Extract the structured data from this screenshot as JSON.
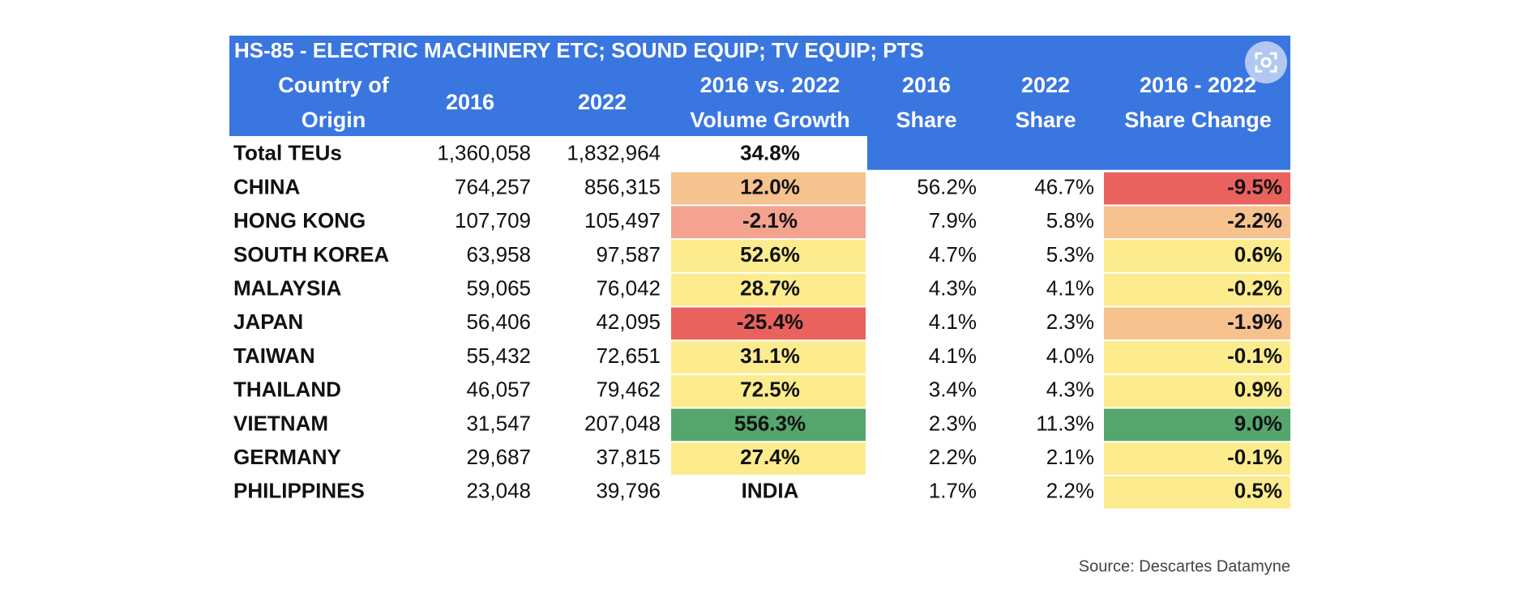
{
  "chart_data": {
    "type": "table",
    "title": "HS-85 - ELECTRIC MACHINERY ETC; SOUND EQUIP; TV EQUIP; PTS",
    "columns": [
      "Country of Origin",
      "2016",
      "2022",
      "2016 vs. 2022 Volume Growth",
      "2016 Share",
      "2022 Share",
      "2016 - 2022 Share Change"
    ],
    "header_lines": [
      [
        "Country of",
        "Origin"
      ],
      [
        "2016"
      ],
      [
        "2022"
      ],
      [
        "2016  vs. 2022",
        "Volume Growth"
      ],
      [
        "2016",
        "Share"
      ],
      [
        "2022",
        "Share"
      ],
      [
        "2016 - 2022",
        "Share Change"
      ]
    ],
    "rows": [
      {
        "country": "Total TEUs",
        "v2016": "1,360,058",
        "v2022": "1,832,964",
        "growth": "34.8%",
        "share2016": "",
        "share2022": "",
        "share_change": ""
      },
      {
        "country": "CHINA",
        "v2016": "764,257",
        "v2022": "856,315",
        "growth": "12.0%",
        "share2016": "56.2%",
        "share2022": "46.7%",
        "share_change": "-9.5%"
      },
      {
        "country": "HONG KONG",
        "v2016": "107,709",
        "v2022": "105,497",
        "growth": "-2.1%",
        "share2016": "7.9%",
        "share2022": "5.8%",
        "share_change": "-2.2%"
      },
      {
        "country": "SOUTH KOREA",
        "v2016": "63,958",
        "v2022": "97,587",
        "growth": "52.6%",
        "share2016": "4.7%",
        "share2022": "5.3%",
        "share_change": "0.6%"
      },
      {
        "country": "MALAYSIA",
        "v2016": "59,065",
        "v2022": "76,042",
        "growth": "28.7%",
        "share2016": "4.3%",
        "share2022": "4.1%",
        "share_change": "-0.2%"
      },
      {
        "country": "JAPAN",
        "v2016": "56,406",
        "v2022": "42,095",
        "growth": "-25.4%",
        "share2016": "4.1%",
        "share2022": "2.3%",
        "share_change": "-1.9%"
      },
      {
        "country": "TAIWAN",
        "v2016": "55,432",
        "v2022": "72,651",
        "growth": "31.1%",
        "share2016": "4.1%",
        "share2022": "4.0%",
        "share_change": "-0.1%"
      },
      {
        "country": "THAILAND",
        "v2016": "46,057",
        "v2022": "79,462",
        "growth": "72.5%",
        "share2016": "3.4%",
        "share2022": "4.3%",
        "share_change": "0.9%"
      },
      {
        "country": "VIETNAM",
        "v2016": "31,547",
        "v2022": "207,048",
        "growth": "556.3%",
        "share2016": "2.3%",
        "share2022": "11.3%",
        "share_change": "9.0%"
      },
      {
        "country": "GERMANY",
        "v2016": "29,687",
        "v2022": "37,815",
        "growth": "27.4%",
        "share2016": "2.2%",
        "share2022": "2.1%",
        "share_change": "-0.1%"
      },
      {
        "country": "PHILIPPINES",
        "v2016": "23,048",
        "v2022": "39,796",
        "growth": "INDIA",
        "share2016": "1.7%",
        "share2022": "2.2%",
        "share_change": "0.5%"
      }
    ],
    "growth_colors": [
      "#ffffff",
      "#f6c28e",
      "#f3a390",
      "#fcec8e",
      "#fcec8e",
      "#e9625e",
      "#fcec8e",
      "#fcec8e",
      "#54a66d",
      "#fcec8e",
      "#ffffff"
    ],
    "change_colors": [
      "",
      "#e9625e",
      "#f6c28e",
      "#fcec8e",
      "#fcec8e",
      "#f6c28e",
      "#fcec8e",
      "#fcec8e",
      "#54a66d",
      "#fcec8e",
      "#fcec8e"
    ],
    "source": "Source: Descartes Datamyne"
  },
  "colors": {
    "header_blue": "#3a76e0",
    "header_text": "#ffffff"
  },
  "icons": {
    "zoom": "scan-zoom-icon"
  }
}
